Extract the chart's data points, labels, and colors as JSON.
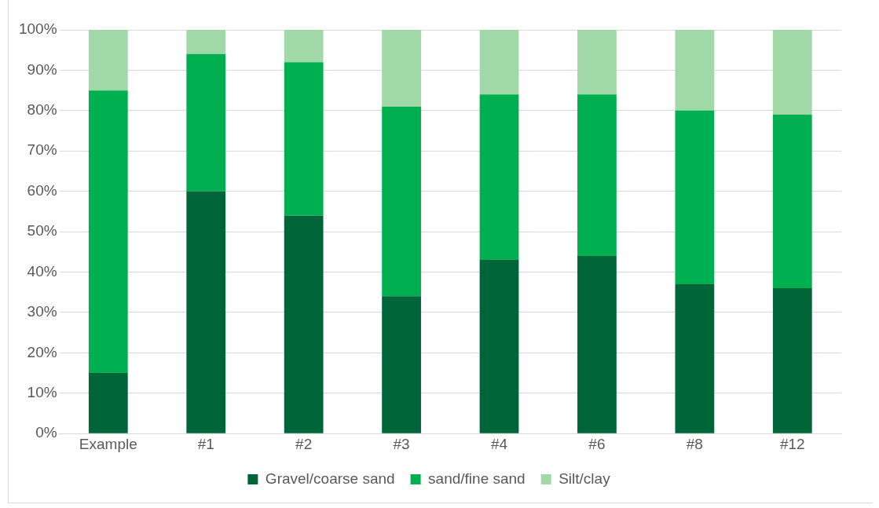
{
  "chart_data": {
    "type": "bar",
    "stacked": true,
    "categories": [
      "Example",
      "#1",
      "#2",
      "#3",
      "#4",
      "#6",
      "#8",
      "#12"
    ],
    "series": [
      {
        "name": "Gravel/coarse sand",
        "color": "#00663a",
        "values": [
          15,
          60,
          54,
          34,
          43,
          44,
          37,
          36
        ]
      },
      {
        "name": "sand/fine sand",
        "color": "#00b050",
        "values": [
          70,
          34,
          38,
          47,
          41,
          40,
          43,
          43
        ]
      },
      {
        "name": "Silt/clay",
        "color": "#a0d8a8",
        "values": [
          15,
          6,
          8,
          19,
          16,
          16,
          20,
          21
        ]
      }
    ],
    "ylim": [
      0,
      100
    ],
    "yticks": [
      {
        "value": 0,
        "label": "0%"
      },
      {
        "value": 10,
        "label": "10%"
      },
      {
        "value": 20,
        "label": "20%"
      },
      {
        "value": 30,
        "label": "30%"
      },
      {
        "value": 40,
        "label": "40%"
      },
      {
        "value": 50,
        "label": "50%"
      },
      {
        "value": 60,
        "label": "60%"
      },
      {
        "value": 70,
        "label": "70%"
      },
      {
        "value": 80,
        "label": "80%"
      },
      {
        "value": 90,
        "label": "90%"
      },
      {
        "value": 100,
        "label": "100%"
      }
    ],
    "grid": "y",
    "legend": "bottom"
  }
}
